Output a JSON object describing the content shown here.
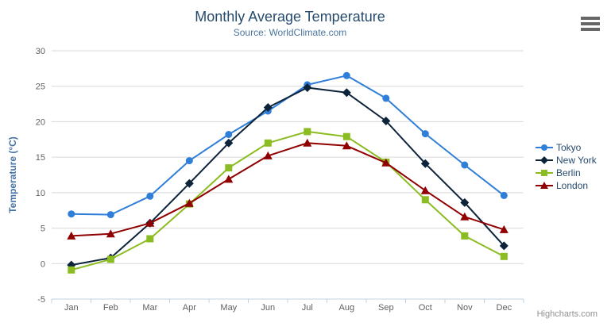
{
  "credit": {
    "label": "Highcharts.com"
  },
  "icons": {
    "export_menu": "hamburger-icon"
  },
  "chart_data": {
    "type": "line",
    "title": "Monthly Average Temperature",
    "subtitle": "Source: WorldClimate.com",
    "categories": [
      "Jan",
      "Feb",
      "Mar",
      "Apr",
      "May",
      "Jun",
      "Jul",
      "Aug",
      "Sep",
      "Oct",
      "Nov",
      "Dec"
    ],
    "xlabel": "",
    "ylabel": "Temperature (°C)",
    "ylim": [
      -5,
      30
    ],
    "yticks": [
      30,
      25,
      20,
      15,
      10,
      5,
      0,
      -5
    ],
    "grid": true,
    "legend_position": "right",
    "series": [
      {
        "name": "Tokyo",
        "color": "#2f7ed8",
        "marker": "circle",
        "values": [
          7.0,
          6.9,
          9.5,
          14.5,
          18.2,
          21.5,
          25.2,
          26.5,
          23.3,
          18.3,
          13.9,
          9.6
        ]
      },
      {
        "name": "New York",
        "color": "#0d233a",
        "marker": "diamond",
        "values": [
          -0.2,
          0.8,
          5.7,
          11.3,
          17.0,
          22.0,
          24.8,
          24.1,
          20.1,
          14.1,
          8.6,
          2.5
        ]
      },
      {
        "name": "Berlin",
        "color": "#8bbc21",
        "marker": "square",
        "values": [
          -0.9,
          0.6,
          3.5,
          8.4,
          13.5,
          17.0,
          18.6,
          17.9,
          14.3,
          9.0,
          3.9,
          1.0
        ]
      },
      {
        "name": "London",
        "color": "#910000",
        "marker": "triangle",
        "values": [
          3.9,
          4.2,
          5.7,
          8.5,
          11.9,
          15.2,
          17.0,
          16.6,
          14.2,
          10.3,
          6.6,
          4.8
        ]
      }
    ],
    "colors": {
      "title": "#274b6d",
      "subtitle": "#4d759e",
      "axis_title": "#4572a7",
      "tick_label": "#606060",
      "grid_line": "#d8d8d8",
      "axis_line": "#c0d0e0",
      "legend_text": "#274b6d",
      "credit_text": "#909090",
      "menu_icon": "#666666"
    }
  }
}
